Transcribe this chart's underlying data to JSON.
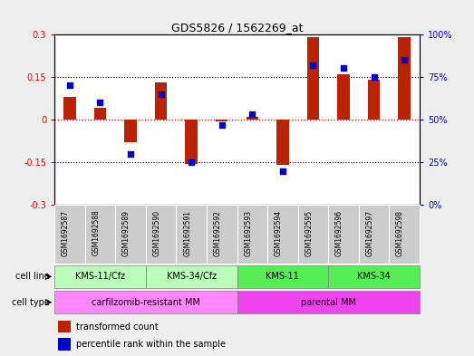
{
  "title": "GDS5826 / 1562269_at",
  "samples": [
    "GSM1692587",
    "GSM1692588",
    "GSM1692589",
    "GSM1692590",
    "GSM1692591",
    "GSM1692592",
    "GSM1692593",
    "GSM1692594",
    "GSM1692595",
    "GSM1692596",
    "GSM1692597",
    "GSM1692598"
  ],
  "transformed_count": [
    0.08,
    0.04,
    -0.08,
    0.13,
    -0.155,
    -0.005,
    0.01,
    -0.16,
    0.29,
    0.16,
    0.14,
    0.29
  ],
  "percentile_rank": [
    70,
    60,
    30,
    65,
    25,
    47,
    53,
    20,
    82,
    80,
    75,
    85
  ],
  "cell_line_groups": [
    {
      "label": "KMS-11/Cfz",
      "start": 0,
      "end": 2,
      "color": "#bbffbb"
    },
    {
      "label": "KMS-34/Cfz",
      "start": 3,
      "end": 5,
      "color": "#bbffbb"
    },
    {
      "label": "KMS-11",
      "start": 6,
      "end": 8,
      "color": "#55ee55"
    },
    {
      "label": "KMS-34",
      "start": 9,
      "end": 11,
      "color": "#55ee55"
    }
  ],
  "cell_type_groups": [
    {
      "label": "carfilzomib-resistant MM",
      "start": 0,
      "end": 5,
      "color": "#ff88ff"
    },
    {
      "label": "parental MM",
      "start": 6,
      "end": 11,
      "color": "#ee44ee"
    }
  ],
  "bar_color": "#bb2200",
  "dot_color": "#0000cc",
  "ylim": [
    -0.3,
    0.3
  ],
  "y2lim": [
    0,
    100
  ],
  "yticks": [
    -0.3,
    -0.15,
    0.0,
    0.15,
    0.3
  ],
  "ytick_labels": [
    "-0.3",
    "-0.15",
    "0",
    "0.15",
    "0.3"
  ],
  "y2ticks": [
    0,
    25,
    50,
    75,
    100
  ],
  "y2tick_labels": [
    "0%",
    "25%",
    "50%",
    "75%",
    "100%"
  ],
  "background_color": "#eeeeee",
  "plot_bg": "#ffffff",
  "sample_box_color": "#cccccc",
  "cell_line_label": "cell line",
  "cell_type_label": "cell type",
  "legend_tc": "transformed count",
  "legend_pr": "percentile rank within the sample",
  "bar_width": 0.4,
  "dot_size": 18
}
